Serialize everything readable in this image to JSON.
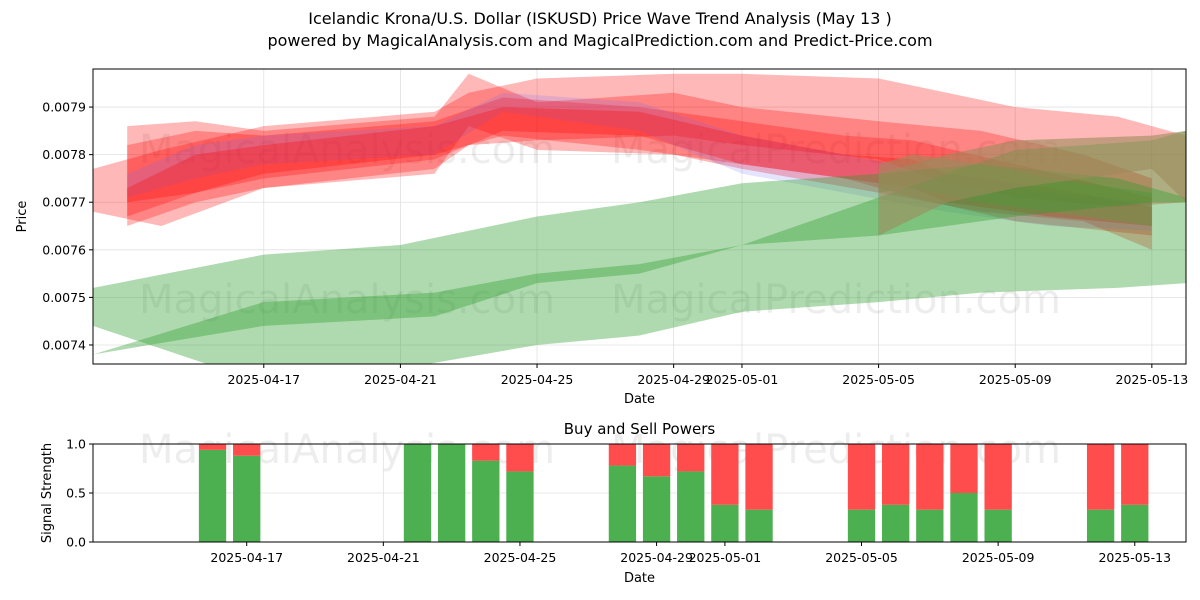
{
  "header": {
    "title_line1": "Icelandic Krona/U.S. Dollar (ISKUSD) Price Wave Trend Analysis (May 13 )",
    "title_line2": "powered by MagicalAnalysis.com and MagicalPrediction.com and Predict-Price.com"
  },
  "watermarks": [
    "MagicalAnalysis.com",
    "MagicalPrediction.com"
  ],
  "colors": {
    "red": "#ff0000",
    "blue": "#6a6aff",
    "green": "#2e9e2e",
    "brown": "#9c8a5c",
    "buy": "#4caf50",
    "sell": "#ff4c4c"
  },
  "chart_data": [
    {
      "type": "area",
      "xlabel": "Date",
      "ylabel": "Price",
      "ylim": [
        0.00736,
        0.00798
      ],
      "xlim": [
        "2025-04-12",
        "2025-05-14"
      ],
      "x_ticks": [
        "2025-04-17",
        "2025-04-21",
        "2025-04-25",
        "2025-04-29",
        "2025-05-01",
        "2025-05-05",
        "2025-05-09",
        "2025-05-13"
      ],
      "y_ticks": [
        0.0074,
        0.0075,
        0.0076,
        0.0077,
        0.0078,
        0.0079
      ],
      "grid": true,
      "bands": [
        {
          "color": "red",
          "x": [
            "2025-04-12",
            "2025-04-14",
            "2025-04-17",
            "2025-04-22",
            "2025-04-23",
            "2025-04-25",
            "2025-04-29",
            "2025-05-01",
            "2025-05-05",
            "2025-05-07",
            "2025-05-09",
            "2025-05-12",
            "2025-05-14"
          ],
          "upper": [
            0.00777,
            0.00781,
            0.00786,
            0.00789,
            0.00793,
            0.00796,
            0.00797,
            0.00797,
            0.00796,
            0.00793,
            0.0079,
            0.00788,
            0.00784
          ],
          "lower": [
            0.00768,
            0.00765,
            0.00773,
            0.00777,
            0.00782,
            0.00783,
            0.00784,
            0.00782,
            0.00779,
            0.00774,
            0.00771,
            0.00769,
            0.0077
          ]
        },
        {
          "color": "red",
          "x": [
            "2025-04-13",
            "2025-04-15",
            "2025-04-17",
            "2025-04-22",
            "2025-04-23",
            "2025-04-25",
            "2025-04-29",
            "2025-05-01",
            "2025-05-05",
            "2025-05-08",
            "2025-05-11",
            "2025-05-13"
          ],
          "upper": [
            0.00786,
            0.00787,
            0.00785,
            0.00788,
            0.00797,
            0.00791,
            0.00793,
            0.0079,
            0.00787,
            0.00785,
            0.0078,
            0.00775
          ],
          "lower": [
            0.00765,
            0.0077,
            0.00773,
            0.00776,
            0.00786,
            0.00781,
            0.0078,
            0.00777,
            0.00772,
            0.00768,
            0.00766,
            0.0076
          ]
        },
        {
          "color": "red",
          "x": [
            "2025-04-13",
            "2025-04-15",
            "2025-04-17",
            "2025-04-22",
            "2025-04-24",
            "2025-04-28",
            "2025-05-01",
            "2025-05-04",
            "2025-05-06",
            "2025-05-09",
            "2025-05-13"
          ],
          "upper": [
            0.00782,
            0.00785,
            0.00784,
            0.00787,
            0.00792,
            0.0079,
            0.00787,
            0.00784,
            0.00783,
            0.00778,
            0.00771
          ],
          "lower": [
            0.0077,
            0.00772,
            0.00776,
            0.0078,
            0.00784,
            0.00781,
            0.00778,
            0.00775,
            0.00771,
            0.00766,
            0.00763
          ]
        },
        {
          "color": "blue",
          "x": [
            "2025-04-13",
            "2025-04-15",
            "2025-04-17",
            "2025-04-22",
            "2025-04-24",
            "2025-04-28",
            "2025-05-01",
            "2025-05-04",
            "2025-05-07",
            "2025-05-10",
            "2025-05-13"
          ],
          "upper": [
            0.00776,
            0.00782,
            0.00784,
            0.00786,
            0.00793,
            0.00791,
            0.00784,
            0.0078,
            0.00776,
            0.00772,
            0.0077
          ],
          "lower": [
            0.00771,
            0.00775,
            0.00778,
            0.0078,
            0.00789,
            0.00785,
            0.00776,
            0.00772,
            0.00768,
            0.00765,
            0.00764
          ]
        },
        {
          "color": "red",
          "x": [
            "2025-04-13",
            "2025-04-15",
            "2025-04-17",
            "2025-04-22",
            "2025-04-24",
            "2025-04-28",
            "2025-05-01",
            "2025-05-04",
            "2025-05-06",
            "2025-05-07",
            "2025-05-10",
            "2025-05-13"
          ],
          "upper": [
            0.00773,
            0.0078,
            0.00782,
            0.00786,
            0.0079,
            0.00789,
            0.00784,
            0.0078,
            0.00779,
            0.00776,
            0.00773,
            0.00769
          ],
          "lower": [
            0.00767,
            0.00772,
            0.00775,
            0.00779,
            0.00785,
            0.00784,
            0.00778,
            0.00775,
            0.00773,
            0.0077,
            0.00767,
            0.00765
          ]
        },
        {
          "color": "brown",
          "x": [
            "2025-05-05",
            "2025-05-06",
            "2025-05-08",
            "2025-05-10",
            "2025-05-13"
          ],
          "upper": [
            0.00778,
            0.0078,
            0.00778,
            0.00775,
            0.00772
          ],
          "lower": [
            0.00772,
            0.00773,
            0.0077,
            0.00768,
            0.00765
          ]
        },
        {
          "color": "green",
          "x": [
            "2025-04-12",
            "2025-04-17",
            "2025-04-21",
            "2025-04-25",
            "2025-04-28",
            "2025-05-01",
            "2025-05-05",
            "2025-05-08",
            "2025-05-12",
            "2025-05-14"
          ],
          "upper": [
            0.00752,
            0.00759,
            0.00761,
            0.00767,
            0.0077,
            0.00774,
            0.00776,
            0.00778,
            0.00775,
            0.00771
          ],
          "lower": [
            0.00744,
            0.00732,
            0.00735,
            0.0074,
            0.00742,
            0.00747,
            0.00749,
            0.00751,
            0.00752,
            0.00753
          ]
        },
        {
          "color": "green",
          "x": [
            "2025-04-12",
            "2025-04-17",
            "2025-04-22",
            "2025-04-25",
            "2025-04-28",
            "2025-05-01",
            "2025-05-05",
            "2025-05-09",
            "2025-05-13",
            "2025-05-14"
          ],
          "upper": [
            0.00738,
            0.00749,
            0.00751,
            0.00755,
            0.00757,
            0.00761,
            0.00771,
            0.00781,
            0.00783,
            0.00785
          ],
          "lower": [
            0.00738,
            0.00744,
            0.00746,
            0.00753,
            0.00755,
            0.00761,
            0.00763,
            0.00767,
            0.0077,
            0.0077
          ]
        },
        {
          "color": "brown",
          "x": [
            "2025-05-05",
            "2025-05-07",
            "2025-05-09",
            "2025-05-13",
            "2025-05-14"
          ],
          "upper": [
            0.00776,
            0.0078,
            0.00783,
            0.00784,
            0.00785
          ],
          "lower": [
            0.00763,
            0.0077,
            0.00773,
            0.00777,
            0.0077
          ]
        }
      ]
    },
    {
      "type": "bar",
      "title": "Buy and Sell Powers",
      "xlabel": "Date",
      "ylabel": "Signal Strength",
      "ylim": [
        0,
        1
      ],
      "y_ticks": [
        "0.0",
        "0.5",
        "1.0"
      ],
      "x_ticks": [
        "2025-04-17",
        "2025-04-21",
        "2025-04-25",
        "2025-04-29",
        "2025-05-01",
        "2025-05-05",
        "2025-05-09",
        "2025-05-13"
      ],
      "xlim": [
        "2025-04-13",
        "2025-05-14"
      ],
      "grid": true,
      "categories": [
        "2025-04-16",
        "2025-04-17",
        "2025-04-22",
        "2025-04-23",
        "2025-04-24",
        "2025-04-25",
        "2025-04-28",
        "2025-04-29",
        "2025-04-30",
        "2025-05-01",
        "2025-05-02",
        "2025-05-05",
        "2025-05-06",
        "2025-05-07",
        "2025-05-08",
        "2025-05-09",
        "2025-05-12",
        "2025-05-13"
      ],
      "series": [
        {
          "name": "buy",
          "values": [
            0.94,
            0.88,
            1.0,
            1.0,
            0.83,
            0.72,
            0.78,
            0.67,
            0.72,
            0.38,
            0.33,
            0.33,
            0.38,
            0.33,
            0.5,
            0.33,
            0.33,
            0.38
          ]
        },
        {
          "name": "sell",
          "values": [
            0.06,
            0.12,
            0.0,
            0.0,
            0.17,
            0.28,
            0.22,
            0.33,
            0.28,
            0.62,
            0.67,
            0.67,
            0.62,
            0.67,
            0.5,
            0.67,
            0.67,
            0.62
          ]
        }
      ]
    }
  ]
}
